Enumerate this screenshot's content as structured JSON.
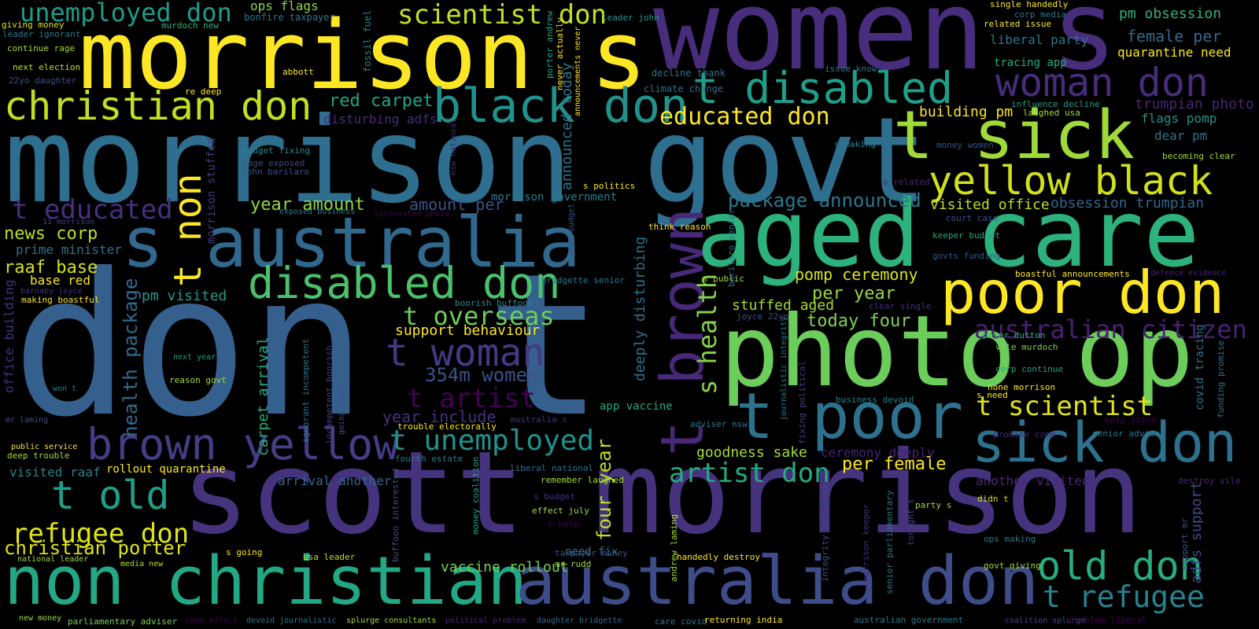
{
  "words": [
    {
      "text": "don t",
      "color": "#35608d"
    },
    {
      "text": "morrison govt",
      "color": "#2e6e8e"
    },
    {
      "text": "scott morrison",
      "color": "#46337e"
    },
    {
      "text": "women s",
      "color": "#472d7b"
    },
    {
      "text": "morrison s",
      "color": "#fde725"
    },
    {
      "text": "aged care",
      "color": "#2db27d"
    },
    {
      "text": "photo op",
      "color": "#6ccd5a"
    },
    {
      "text": "s australia",
      "color": "#31688e"
    },
    {
      "text": "non christian",
      "color": "#22a884"
    },
    {
      "text": "australia don",
      "color": "#3e4c8a"
    },
    {
      "text": "sick don",
      "color": "#2c728e"
    },
    {
      "text": "poor don",
      "color": "#fde725"
    },
    {
      "text": "t sick",
      "color": "#a0da39"
    },
    {
      "text": "t poor",
      "color": "#2c728e"
    },
    {
      "text": "black don",
      "color": "#21918c"
    },
    {
      "text": "christian don",
      "color": "#c2df23"
    },
    {
      "text": "brown yellow",
      "color": "#433e85"
    },
    {
      "text": "t disabled",
      "color": "#1f9e89"
    },
    {
      "text": "yellow black",
      "color": "#d0e11c"
    },
    {
      "text": "disabled don",
      "color": "#4ac16d"
    },
    {
      "text": "t brown",
      "color": "#482878"
    },
    {
      "text": "woman don",
      "color": "#472c7a"
    },
    {
      "text": "t non",
      "color": "#fde725"
    },
    {
      "text": "t old",
      "color": "#1f9f88"
    },
    {
      "text": "old don",
      "color": "#27ad81"
    },
    {
      "text": "t woman",
      "color": "#443983"
    },
    {
      "text": "unemployed don",
      "color": "#1f9a8a"
    },
    {
      "text": "t unemployed",
      "color": "#20928c"
    },
    {
      "text": "refugee don",
      "color": "#dde318"
    },
    {
      "text": "t refugee",
      "color": "#26828e"
    },
    {
      "text": "t scientist",
      "color": "#dde318"
    },
    {
      "text": "scientist don",
      "color": "#c0df25"
    },
    {
      "text": "australian citizen",
      "color": "#482173"
    },
    {
      "text": "artist don",
      "color": "#25ab82"
    },
    {
      "text": "t artist",
      "color": "#440154"
    },
    {
      "text": "t educated",
      "color": "#46307e"
    },
    {
      "text": "educated don",
      "color": "#fde725"
    },
    {
      "text": "t overseas",
      "color": "#6ccd5a"
    },
    {
      "text": "s health",
      "color": "#84d44b"
    },
    {
      "text": "health package",
      "color": "#306a8e"
    },
    {
      "text": "christian porter",
      "color": "#dde318"
    },
    {
      "text": "package announced",
      "color": "#2a788e"
    },
    {
      "text": "354m women",
      "color": "#3b528b"
    },
    {
      "text": "four year",
      "color": "#c2df23"
    },
    {
      "text": "news corp",
      "color": "#bade28"
    },
    {
      "text": "raaf base",
      "color": "#d5e21a"
    },
    {
      "text": "red carpet",
      "color": "#20a386"
    },
    {
      "text": "pomp ceremony",
      "color": "#d8e219"
    },
    {
      "text": "per year",
      "color": "#95d840"
    },
    {
      "text": "per female",
      "color": "#fde725"
    },
    {
      "text": "today four",
      "color": "#7fd34e"
    },
    {
      "text": "announced today",
      "color": "#2a768e"
    },
    {
      "text": "year amount",
      "color": "#8fd744"
    },
    {
      "text": "amount per",
      "color": "#3b528b"
    },
    {
      "text": "visited office",
      "color": "#bddf26"
    },
    {
      "text": "obsession trumpian",
      "color": "#32658e"
    },
    {
      "text": "carpet arrival",
      "color": "#27ad81"
    },
    {
      "text": "vaccine rollout",
      "color": "#75d054"
    },
    {
      "text": "building pm",
      "color": "#fde725"
    },
    {
      "text": "female per",
      "color": "#306a8e"
    },
    {
      "text": "support behaviour",
      "color": "#fde725"
    },
    {
      "text": "year include",
      "color": "#46327e"
    },
    {
      "text": "deeply disturbing",
      "color": "#2c728e"
    },
    {
      "text": "goodness sake",
      "color": "#a5db36"
    },
    {
      "text": "stuffed aged",
      "color": "#a2da37"
    },
    {
      "text": "pm obsession",
      "color": "#2db27d"
    },
    {
      "text": "quarantine need",
      "color": "#fde725"
    },
    {
      "text": "ceremony deeply",
      "color": "#482475"
    },
    {
      "text": "another visited",
      "color": "#482878"
    },
    {
      "text": "trumpian photo",
      "color": "#482475"
    },
    {
      "text": "arrival another",
      "color": "#31688e"
    },
    {
      "text": "morrison government",
      "color": "#287c8e"
    },
    {
      "text": "liberal party",
      "color": "#2a788e"
    },
    {
      "text": "covid tracing",
      "color": "#2c728e"
    },
    {
      "text": "pm visited",
      "color": "#1f9a8a"
    },
    {
      "text": "base red",
      "color": "#fde725"
    },
    {
      "text": "prime minister",
      "color": "#2c728e"
    },
    {
      "text": "visited raaf",
      "color": "#26828e"
    },
    {
      "text": "rollout quarantine",
      "color": "#fde725"
    },
    {
      "text": "flags pomp",
      "color": "#21918c"
    },
    {
      "text": "dear pm",
      "color": "#2c728e"
    },
    {
      "text": "tracing app",
      "color": "#26ad81"
    },
    {
      "text": "app vaccine",
      "color": "#22a884"
    },
    {
      "text": "office building",
      "color": "#46307e"
    },
    {
      "text": "disturbing adfs",
      "color": "#472c7a"
    },
    {
      "text": "adfs support",
      "color": "#3e4a89"
    },
    {
      "text": "ops flags",
      "color": "#8fd744"
    },
    {
      "text": "need fix",
      "color": "#2c728e"
    },
    {
      "text": "morrison stuffed",
      "color": "#443a83"
    },
    {
      "text": "climate change",
      "color": "#2d718e"
    },
    {
      "text": "decline thank",
      "color": "#2c738e"
    },
    {
      "text": "influence decline",
      "color": "#1f9e89"
    },
    {
      "text": "laughed usa",
      "color": "#a2da37"
    },
    {
      "text": "ignorant incompetent",
      "color": "#2c728e"
    },
    {
      "text": "incompetent boorish",
      "color": "#433e85"
    },
    {
      "text": "boorish buffoon",
      "color": "#21918c"
    },
    {
      "text": "buffoon interested",
      "color": "#3b518b"
    },
    {
      "text": "interested photo",
      "color": "#440154"
    },
    {
      "text": "fossil fuel",
      "color": "#25838e"
    },
    {
      "text": "bonfire taxpayer",
      "color": "#2a788e"
    },
    {
      "text": "murdoch new",
      "color": "#2db27d"
    },
    {
      "text": "giving money",
      "color": "#d8e219"
    },
    {
      "text": "leader ignorant",
      "color": "#2a788e"
    },
    {
      "text": "continue rage",
      "color": "#a5db36"
    },
    {
      "text": "next election",
      "color": "#c2df23"
    },
    {
      "text": "22yo daughter",
      "color": "#3b528b"
    },
    {
      "text": "abbott",
      "color": "#fde725"
    },
    {
      "text": "re deep",
      "color": "#fde725"
    },
    {
      "text": "budget fixing",
      "color": "#228c8d"
    },
    {
      "text": "rage exposed",
      "color": "#3e4a89"
    },
    {
      "text": "john barilaro",
      "color": "#3b528b"
    },
    {
      "text": "exposed business",
      "color": "#26828e"
    },
    {
      "text": "11 morrison",
      "color": "#433e85"
    },
    {
      "text": "barnaby joyce",
      "color": "#46327e"
    },
    {
      "text": "making boastful",
      "color": "#fde725"
    },
    {
      "text": "next year",
      "color": "#1f9e89"
    },
    {
      "text": "reason govt",
      "color": "#a2da37"
    },
    {
      "text": "won t",
      "color": "#287c8e"
    },
    {
      "text": "mr laming",
      "color": "#3b518b"
    },
    {
      "text": "public service",
      "color": "#fde725"
    },
    {
      "text": "deep trouble",
      "color": "#a2da37"
    },
    {
      "text": "national leader",
      "color": "#a2da37"
    },
    {
      "text": "media new",
      "color": "#b5de2b"
    },
    {
      "text": "new money",
      "color": "#a0da39"
    },
    {
      "text": "parliamentary adviser",
      "color": "#7ad151"
    },
    {
      "text": "come effect",
      "color": "#440154"
    },
    {
      "text": "devoid journalistic",
      "color": "#2a778e"
    },
    {
      "text": "splurge consultants",
      "color": "#a5db36"
    },
    {
      "text": "political problem",
      "color": "#482878"
    },
    {
      "text": "daughter bridgette",
      "color": "#31688e"
    },
    {
      "text": "care covid",
      "color": "#2a778e"
    },
    {
      "text": "returning india",
      "color": "#fde725"
    },
    {
      "text": "australian government",
      "color": "#2a788e"
    },
    {
      "text": "coalition splurge",
      "color": "#3e4989"
    },
    {
      "text": "problem liberal",
      "color": "#440154"
    },
    {
      "text": "single handedly",
      "color": "#fde725"
    },
    {
      "text": "corp media",
      "color": "#2a788e"
    },
    {
      "text": "related issue",
      "color": "#fde725"
    },
    {
      "text": "leader john",
      "color": "#1f9e89"
    },
    {
      "text": "porter andrew",
      "color": "#22a884"
    },
    {
      "text": "never actually",
      "color": "#fde725"
    },
    {
      "text": "announcements never",
      "color": "#fde725"
    },
    {
      "text": "nsw national",
      "color": "#482878"
    },
    {
      "text": "s politics",
      "color": "#fde725"
    },
    {
      "text": "s making",
      "color": "#26828e"
    },
    {
      "text": "money women",
      "color": "#3b528b"
    },
    {
      "text": "s related",
      "color": "#482475"
    },
    {
      "text": "issue know",
      "color": "#2a788e"
    },
    {
      "text": "becoming clear",
      "color": "#a2da37"
    },
    {
      "text": "think reason",
      "color": "#fde725"
    },
    {
      "text": "court case",
      "color": "#3b528b"
    },
    {
      "text": "keeper budget",
      "color": "#22a884"
    },
    {
      "text": "govts funding",
      "color": "#38588c"
    },
    {
      "text": "barilaro senior",
      "color": "#2c728e"
    },
    {
      "text": "year budget",
      "color": "#3b518b"
    },
    {
      "text": "bridgette senior",
      "color": "#2a788e"
    },
    {
      "text": "s public",
      "color": "#a0da39"
    },
    {
      "text": "boastful announcements",
      "color": "#fde725"
    },
    {
      "text": "defence evidence",
      "color": "#482475"
    },
    {
      "text": "clear single",
      "color": "#46307e"
    },
    {
      "text": "joyce 22yo",
      "color": "#3b528b"
    },
    {
      "text": "journalistic integrity",
      "color": "#2a788e"
    },
    {
      "text": "peter dutton",
      "color": "#2db27d"
    },
    {
      "text": "vile murdoch",
      "color": "#7ad151"
    },
    {
      "text": "corp continue",
      "color": "#20a386"
    },
    {
      "text": "none morrison",
      "color": "#fde725"
    },
    {
      "text": "s need",
      "color": "#fde725"
    },
    {
      "text": "help think",
      "color": "#440154"
    },
    {
      "text": "funding promise",
      "color": "#2c728e"
    },
    {
      "text": "business devoid",
      "color": "#25838e"
    },
    {
      "text": "fixing political",
      "color": "#433e85"
    },
    {
      "text": "trouble electorally",
      "color": "#fde725"
    },
    {
      "text": "australia s",
      "color": "#46337e"
    },
    {
      "text": "fourth estate",
      "color": "#287c8e"
    },
    {
      "text": "liberal national",
      "color": "#2c728e"
    },
    {
      "text": "remember laughed",
      "color": "#a5db36"
    },
    {
      "text": "s budget",
      "color": "#46307e"
    },
    {
      "text": "effect july",
      "color": "#a2da37"
    },
    {
      "text": "t help",
      "color": "#440154"
    },
    {
      "text": "taxpayer money",
      "color": "#3b528b"
    },
    {
      "text": "mr rudd",
      "color": "#a2da37"
    },
    {
      "text": "money coalition",
      "color": "#20a386"
    },
    {
      "text": "going tough",
      "color": "#3b528b"
    },
    {
      "text": "s going",
      "color": "#fde725"
    },
    {
      "text": "usa leader",
      "color": "#bddf26"
    },
    {
      "text": "adviser nsw",
      "color": "#2a788e"
    },
    {
      "text": "andrew laming",
      "color": "#a5db36"
    },
    {
      "text": "handedly destroy",
      "color": "#fde725"
    },
    {
      "text": "integrity influence",
      "color": "#3b518b"
    },
    {
      "text": "morrison keeper",
      "color": "#472c7a"
    },
    {
      "text": "senior parliamentary",
      "color": "#2a788e"
    },
    {
      "text": "tonight s",
      "color": "#433e85"
    },
    {
      "text": "party s",
      "color": "#a2da37"
    },
    {
      "text": "didn t",
      "color": "#d8e219"
    },
    {
      "text": "promise come",
      "color": "#482475"
    },
    {
      "text": "senior adviser",
      "color": "#2a788e"
    },
    {
      "text": "destroy vile",
      "color": "#482878"
    },
    {
      "text": "support mr",
      "color": "#3b528b"
    },
    {
      "text": "ops making",
      "color": "#2a788e"
    },
    {
      "text": "govt giving",
      "color": "#a2da37"
    }
  ]
}
